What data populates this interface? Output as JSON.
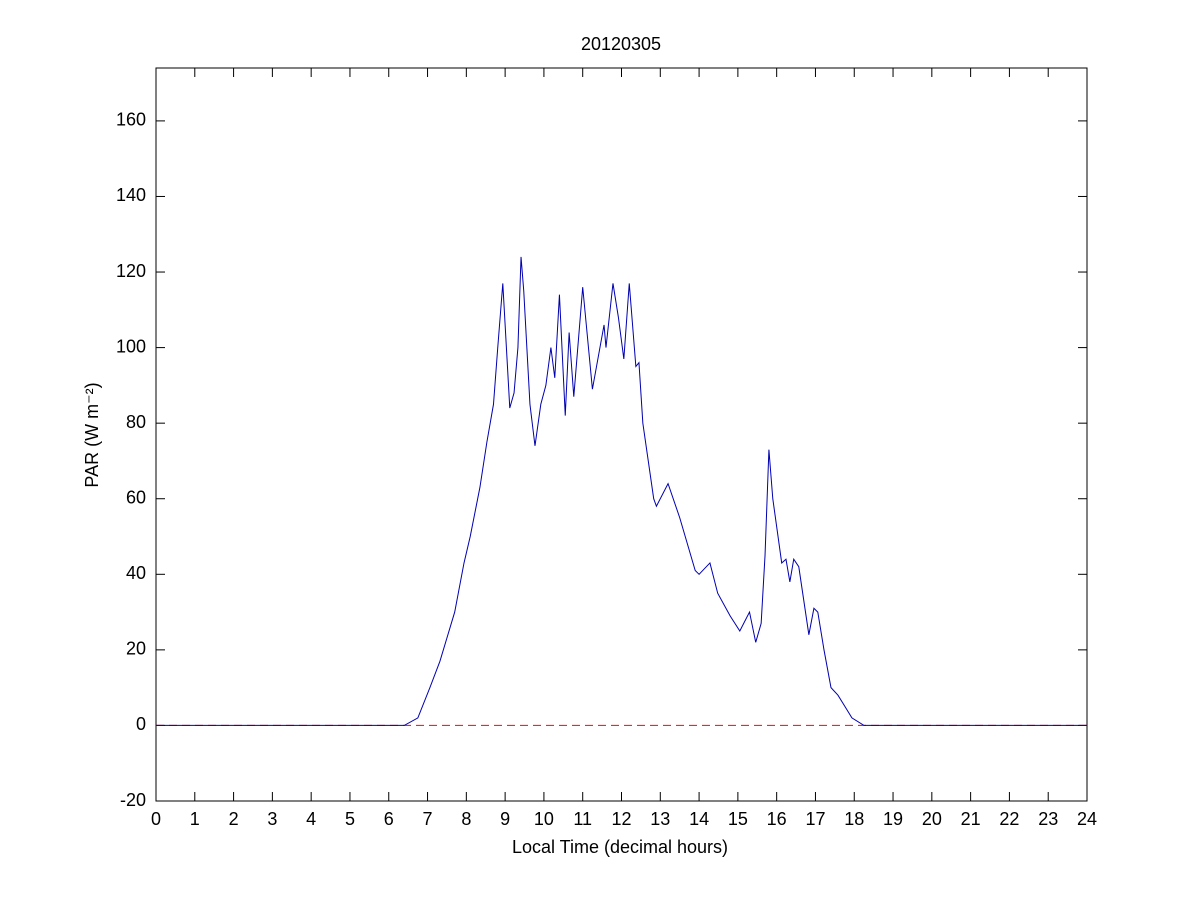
{
  "chart_data": {
    "type": "line",
    "title": "20120305",
    "xlabel": "Local Time (decimal hours)",
    "ylabel": "PAR (W m⁻²)",
    "xlim": [
      0,
      24
    ],
    "ylim": [
      -20,
      174
    ],
    "xticks": [
      0,
      1,
      2,
      3,
      4,
      5,
      6,
      7,
      8,
      9,
      10,
      11,
      12,
      13,
      14,
      15,
      16,
      17,
      18,
      19,
      20,
      21,
      22,
      23,
      24
    ],
    "yticks": [
      -20,
      0,
      20,
      40,
      60,
      80,
      100,
      120,
      140,
      160
    ],
    "reference_line": {
      "value": 0,
      "color": "#ff0000",
      "style": "dashed"
    },
    "series": [
      {
        "color": "#0000b0",
        "x": [
          0,
          6.4,
          6.75,
          7.06,
          7.32,
          7.7,
          7.94,
          8.1,
          8.35,
          8.53,
          8.7,
          8.81,
          8.94,
          9.12,
          9.23,
          9.33,
          9.41,
          9.48,
          9.64,
          9.77,
          9.92,
          10.05,
          10.18,
          10.28,
          10.4,
          10.55,
          10.65,
          10.77,
          11.0,
          11.25,
          11.55,
          11.6,
          11.78,
          11.92,
          12.06,
          12.2,
          12.37,
          12.45,
          12.55,
          12.83,
          12.9,
          13.2,
          13.5,
          13.9,
          14.0,
          14.28,
          14.48,
          14.8,
          15.05,
          15.2,
          15.3,
          15.46,
          15.6,
          15.7,
          15.8,
          15.9,
          16.13,
          16.24,
          16.34,
          16.44,
          16.57,
          16.83,
          16.96,
          17.06,
          17.22,
          17.4,
          17.58,
          17.76,
          17.94,
          18.25,
          24
        ],
        "values": [
          0,
          0,
          2,
          10,
          17,
          30,
          43,
          50,
          63,
          75,
          85,
          100,
          117,
          84,
          88,
          100,
          124,
          115,
          85,
          74,
          85,
          90,
          100,
          92,
          114,
          82,
          104,
          87,
          116,
          89,
          106,
          100,
          117,
          108,
          97,
          117,
          95,
          96,
          80,
          60,
          58,
          64,
          55,
          41,
          40,
          43,
          35,
          29,
          25,
          28,
          30,
          22,
          27,
          45,
          73,
          60,
          43,
          44,
          38,
          44,
          42,
          24,
          31,
          30,
          20,
          10,
          8,
          5,
          2,
          0,
          0
        ]
      }
    ]
  }
}
